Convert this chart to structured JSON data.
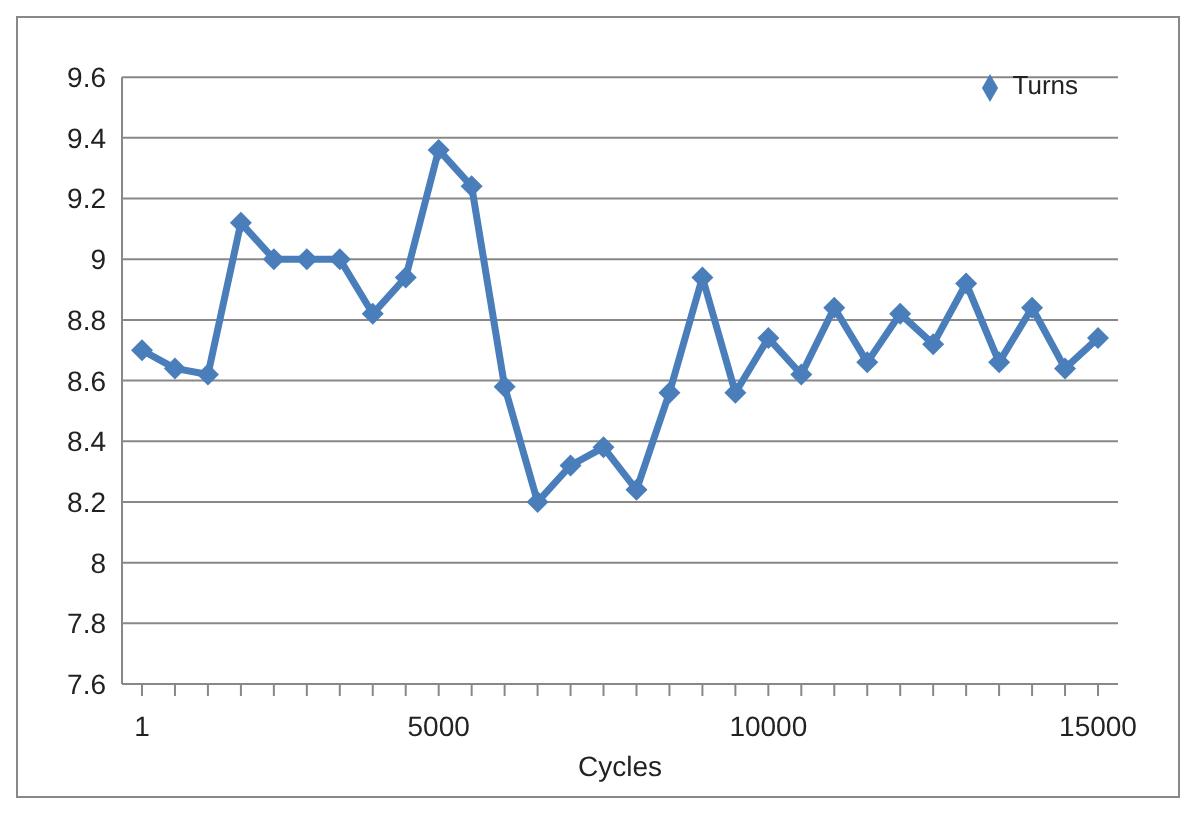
{
  "chart_data": {
    "type": "line",
    "xlabel": "Cycles",
    "categories": [
      "1",
      null,
      null,
      null,
      null,
      null,
      null,
      null,
      null,
      "5000",
      null,
      null,
      null,
      null,
      null,
      null,
      null,
      null,
      null,
      "10000",
      null,
      null,
      null,
      null,
      null,
      null,
      null,
      null,
      null,
      "15000"
    ],
    "series": [
      {
        "name": "Turns",
        "color": "#4a7ebb",
        "values": [
          8.7,
          8.64,
          8.62,
          9.12,
          9.0,
          9.0,
          9.0,
          8.82,
          8.94,
          9.36,
          9.24,
          8.58,
          8.2,
          8.32,
          8.38,
          8.24,
          8.56,
          8.94,
          8.56,
          8.74,
          8.62,
          8.84,
          8.66,
          8.82,
          8.72,
          8.92,
          8.66,
          8.84,
          8.64,
          8.74
        ]
      }
    ],
    "ylim": [
      7.6,
      9.6
    ],
    "yticks": [
      7.6,
      7.8,
      8,
      8.2,
      8.4,
      8.6,
      8.8,
      9,
      9.2,
      9.4,
      9.6
    ],
    "grid": "y",
    "legend": "top right",
    "marker": "diamond",
    "line_style": "solid"
  }
}
